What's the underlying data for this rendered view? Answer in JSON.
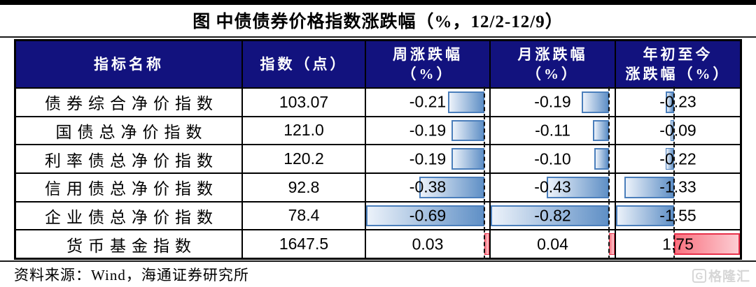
{
  "title": "图  中债债券价格指数涨跌幅（%，12/2-12/9）",
  "table": {
    "headers": [
      "指标名称",
      "指数（点）",
      "周涨跌幅\n（%）",
      "月涨跌幅\n（%）",
      "年初至今\n涨跌幅（%）"
    ],
    "rows": [
      {
        "label": "债券综合净价指数",
        "index": "103.07",
        "week": "-0.21",
        "month": "-0.19",
        "ytd": "-0.23"
      },
      {
        "label": "国债总净价指数",
        "index": "121.0",
        "week": "-0.19",
        "month": "-0.11",
        "ytd": "-0.09"
      },
      {
        "label": "利率债总净价指数",
        "index": "120.2",
        "week": "-0.19",
        "month": "-0.10",
        "ytd": "-0.22"
      },
      {
        "label": "信用债总净价指数",
        "index": "92.8",
        "week": "-0.38",
        "month": "-0.43",
        "ytd": "-1.33"
      },
      {
        "label": "企业债总净价指数",
        "index": "78.4",
        "week": "-0.69",
        "month": "-0.82",
        "ytd": "-1.55"
      },
      {
        "label": "货币基金指数",
        "index": "1647.5",
        "week": "0.03",
        "month": "0.04",
        "ytd": "1.75"
      }
    ]
  },
  "footer": {
    "source": "资料来源：Wind，海通证券研究所"
  },
  "logo": {
    "icon": "G",
    "text": "格隆汇"
  },
  "colors": {
    "header_bg": "#12127e",
    "header_text": "#ffffff",
    "grid_line": "#000000",
    "bar_negative_border": "#4a7ebb",
    "bar_negative_light": "#ecf2fa",
    "bar_negative_dark": "#6090c6",
    "bar_positive_border": "#e8304a",
    "bar_positive_dark": "#f9717f",
    "bar_positive_light": "#fccdd3",
    "axis_dash": "#111111",
    "logo_gray": "#d6d6d6"
  },
  "chart_data": {
    "type": "table",
    "title": "图 中债债券价格指数涨跌幅（%，12/2-12/9）",
    "columns": [
      "指标名称",
      "指数（点）",
      "周涨跌幅（%）",
      "月涨跌幅（%）",
      "年初至今涨跌幅（%）"
    ],
    "rows": [
      [
        "债券综合净价指数",
        103.07,
        -0.21,
        -0.19,
        -0.23
      ],
      [
        "国债总净价指数",
        121.0,
        -0.19,
        -0.11,
        -0.09
      ],
      [
        "利率债总净价指数",
        120.2,
        -0.19,
        -0.1,
        -0.22
      ],
      [
        "信用债总净价指数",
        92.8,
        -0.38,
        -0.43,
        -1.33
      ],
      [
        "企业债总净价指数",
        78.4,
        -0.69,
        -0.82,
        -1.55
      ],
      [
        "货币基金指数",
        1647.5,
        0.03,
        0.04,
        1.75
      ]
    ],
    "databars": {
      "negative_bar": "blue gradient, extends left from dashed zero axis",
      "positive_bar": "red gradient, extends right from dashed zero axis",
      "week_range": [
        -0.69,
        0.03
      ],
      "month_range": [
        -0.82,
        0.04
      ],
      "ytd_range": [
        -1.55,
        1.75
      ]
    },
    "source_note": "资料来源：Wind，海通证券研究所"
  }
}
